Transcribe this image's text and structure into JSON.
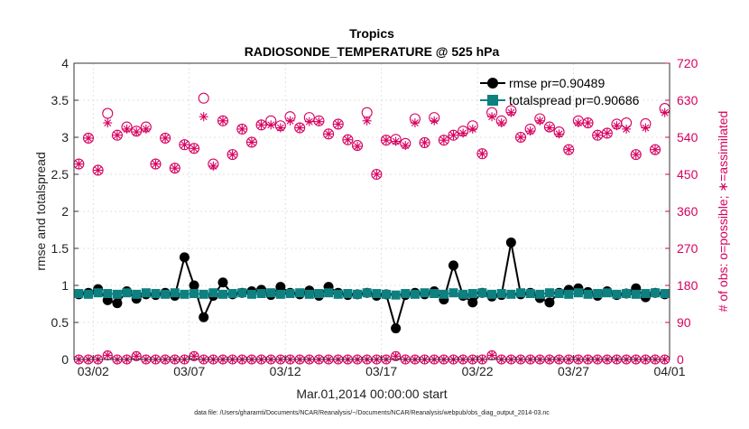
{
  "chart_data": {
    "type": "scatter",
    "title": "Tropics",
    "subtitle": "RADIOSONDE_TEMPERATURE @ 525 hPa",
    "xlabel": "Mar.01,2014 00:00:00 start",
    "ylabel_left": "rmse and totalspread",
    "ylabel_right": "# of obs: o=possible; ∗=assimilated",
    "footnote": "data file: /Users/gharamti/Documents/NCAR/Reanalysis/~/Documents/NCAR/Reanalysis/webpub/obs_diag_output_2014-03.nc",
    "xlim": [
      1,
      32
    ],
    "ylim_left": [
      0,
      4
    ],
    "ylim_right": [
      0,
      720
    ],
    "x_ticks": [
      {
        "value": 2,
        "label": "03/02"
      },
      {
        "value": 7,
        "label": "03/07"
      },
      {
        "value": 12,
        "label": "03/12"
      },
      {
        "value": 17,
        "label": "03/17"
      },
      {
        "value": 22,
        "label": "03/22"
      },
      {
        "value": 27,
        "label": "03/27"
      },
      {
        "value": 32,
        "label": "04/01"
      }
    ],
    "y_ticks_left": [
      "0",
      "0.5",
      "1",
      "1.5",
      "2",
      "2.5",
      "3",
      "3.5",
      "4"
    ],
    "y_ticks_right": [
      "0",
      "90",
      "180",
      "270",
      "360",
      "450",
      "540",
      "630",
      "720"
    ],
    "legend_position": "top-right",
    "colors": {
      "rmse": "#000000",
      "spread": "#0d8080",
      "obs": "#d6005f",
      "axis": "#333333"
    },
    "series": [
      {
        "name": "rmse pr=0.90489",
        "axis": "left",
        "x": [
          1.25,
          1.75,
          2.25,
          2.75,
          3.25,
          3.75,
          4.25,
          4.75,
          5.25,
          5.75,
          6.25,
          6.75,
          7.25,
          7.75,
          8.25,
          8.75,
          9.25,
          9.75,
          10.25,
          10.75,
          11.25,
          11.75,
          12.25,
          12.75,
          13.25,
          13.75,
          14.25,
          14.75,
          15.25,
          15.75,
          16.25,
          16.75,
          17.25,
          17.75,
          18.25,
          18.75,
          19.25,
          19.75,
          20.25,
          20.75,
          21.25,
          21.75,
          22.25,
          22.75,
          23.25,
          23.75,
          24.25,
          24.75,
          25.25,
          25.75,
          26.25,
          26.75,
          27.25,
          27.75,
          28.25,
          28.75,
          29.25,
          29.75,
          30.25,
          30.75,
          31.25,
          31.75
        ],
        "values": [
          0.88,
          0.9,
          0.95,
          0.8,
          0.76,
          0.92,
          0.82,
          0.88,
          0.87,
          0.9,
          0.86,
          1.38,
          1.0,
          0.57,
          0.86,
          1.04,
          0.88,
          0.9,
          0.92,
          0.94,
          0.87,
          0.98,
          0.9,
          0.88,
          0.93,
          0.86,
          0.98,
          0.9,
          0.87,
          0.88,
          0.9,
          0.86,
          0.88,
          0.42,
          0.87,
          0.9,
          0.88,
          0.92,
          0.81,
          1.27,
          0.86,
          0.77,
          0.9,
          0.85,
          0.87,
          1.58,
          0.88,
          0.9,
          0.83,
          0.77,
          0.9,
          0.94,
          0.96,
          0.91,
          0.86,
          0.92,
          0.87,
          0.89,
          0.96,
          0.84,
          0.9,
          0.88
        ]
      },
      {
        "name": "totalspread pr=0.90686",
        "axis": "left",
        "x": [
          1.25,
          1.75,
          2.25,
          2.75,
          3.25,
          3.75,
          4.25,
          4.75,
          5.25,
          5.75,
          6.25,
          6.75,
          7.25,
          7.75,
          8.25,
          8.75,
          9.25,
          9.75,
          10.25,
          10.75,
          11.25,
          11.75,
          12.25,
          12.75,
          13.25,
          13.75,
          14.25,
          14.75,
          15.25,
          15.75,
          16.25,
          16.75,
          17.25,
          17.75,
          18.25,
          18.75,
          19.25,
          19.75,
          20.25,
          20.75,
          21.25,
          21.75,
          22.25,
          22.75,
          23.25,
          23.75,
          24.25,
          24.75,
          25.25,
          25.75,
          26.25,
          26.75,
          27.25,
          27.75,
          28.25,
          28.75,
          29.25,
          29.75,
          30.25,
          30.75,
          31.25,
          31.75
        ],
        "values": [
          0.89,
          0.88,
          0.9,
          0.89,
          0.88,
          0.9,
          0.88,
          0.9,
          0.89,
          0.88,
          0.9,
          0.88,
          0.89,
          0.88,
          0.9,
          0.88,
          0.89,
          0.9,
          0.88,
          0.89,
          0.9,
          0.88,
          0.89,
          0.9,
          0.88,
          0.89,
          0.9,
          0.88,
          0.89,
          0.88,
          0.9,
          0.89,
          0.88,
          0.87,
          0.89,
          0.88,
          0.9,
          0.89,
          0.88,
          0.9,
          0.88,
          0.89,
          0.9,
          0.88,
          0.89,
          0.88,
          0.9,
          0.89,
          0.88,
          0.9,
          0.89,
          0.88,
          0.9,
          0.88,
          0.89,
          0.9,
          0.88,
          0.89,
          0.88,
          0.89,
          0.9,
          0.89
        ]
      },
      {
        "name": "obs possible",
        "axis": "right",
        "x": [
          1.25,
          1.75,
          2.25,
          2.75,
          3.25,
          3.75,
          4.25,
          4.75,
          5.25,
          5.75,
          6.25,
          6.75,
          7.25,
          7.75,
          8.25,
          8.75,
          9.25,
          9.75,
          10.25,
          10.75,
          11.25,
          11.75,
          12.25,
          12.75,
          13.25,
          13.75,
          14.25,
          14.75,
          15.25,
          15.75,
          16.25,
          16.75,
          17.25,
          17.75,
          18.25,
          18.75,
          19.25,
          19.75,
          20.25,
          20.75,
          21.25,
          21.75,
          22.25,
          22.75,
          23.25,
          23.75,
          24.25,
          24.75,
          25.25,
          25.75,
          26.25,
          26.75,
          27.25,
          27.75,
          28.25,
          28.75,
          29.25,
          29.75,
          30.25,
          30.75,
          31.25,
          31.75
        ],
        "values": [
          475,
          538,
          460,
          598,
          545,
          565,
          555,
          565,
          475,
          538,
          465,
          522,
          513,
          635,
          475,
          580,
          498,
          560,
          528,
          570,
          580,
          568,
          590,
          563,
          588,
          580,
          548,
          572,
          534,
          520,
          600,
          450,
          533,
          535,
          525,
          585,
          527,
          588,
          533,
          545,
          555,
          568,
          500,
          600,
          580,
          605,
          540,
          560,
          585,
          565,
          553,
          510,
          580,
          575,
          545,
          550,
          572,
          575,
          498,
          573,
          510,
          610
        ]
      },
      {
        "name": "obs assimilated",
        "axis": "right",
        "x": [
          1.25,
          1.75,
          2.25,
          2.75,
          3.25,
          3.75,
          4.25,
          4.75,
          5.25,
          5.75,
          6.25,
          6.75,
          7.25,
          7.75,
          8.25,
          8.75,
          9.25,
          9.75,
          10.25,
          10.75,
          11.25,
          11.75,
          12.25,
          12.75,
          13.25,
          13.75,
          14.25,
          14.75,
          15.25,
          15.75,
          16.25,
          16.75,
          17.25,
          17.75,
          18.25,
          18.75,
          19.25,
          19.75,
          20.25,
          20.75,
          21.25,
          21.75,
          22.25,
          22.75,
          23.25,
          23.75,
          24.25,
          24.75,
          25.25,
          25.75,
          26.25,
          26.75,
          27.25,
          27.75,
          28.25,
          28.75,
          29.25,
          29.75,
          30.25,
          30.75,
          31.25,
          31.75
        ],
        "values": [
          475,
          538,
          460,
          575,
          545,
          560,
          553,
          560,
          475,
          538,
          465,
          522,
          513,
          590,
          470,
          580,
          498,
          560,
          528,
          570,
          570,
          563,
          580,
          563,
          578,
          578,
          548,
          572,
          534,
          518,
          580,
          450,
          533,
          530,
          520,
          575,
          527,
          580,
          533,
          545,
          550,
          560,
          500,
          590,
          575,
          600,
          540,
          555,
          580,
          563,
          548,
          510,
          575,
          575,
          545,
          550,
          568,
          560,
          498,
          563,
          510,
          600
        ]
      },
      {
        "name": "obs possible (rejected)",
        "axis": "right",
        "x": [
          1.25,
          1.75,
          2.25,
          2.75,
          3.25,
          3.75,
          4.25,
          4.75,
          5.25,
          5.75,
          6.25,
          6.75,
          7.25,
          7.75,
          8.25,
          8.75,
          9.25,
          9.75,
          10.25,
          10.75,
          11.25,
          11.75,
          12.25,
          12.75,
          13.25,
          13.75,
          14.25,
          14.75,
          15.25,
          15.75,
          16.25,
          16.75,
          17.25,
          17.75,
          18.25,
          18.75,
          19.25,
          19.75,
          20.25,
          20.75,
          21.25,
          21.75,
          22.25,
          22.75,
          23.25,
          23.75,
          24.25,
          24.75,
          25.25,
          25.75,
          26.25,
          26.75,
          27.25,
          27.75,
          28.25,
          28.75,
          29.25,
          29.75,
          30.25,
          30.75,
          31.25,
          31.75
        ],
        "values": [
          0,
          0,
          0,
          10,
          0,
          0,
          8,
          0,
          0,
          0,
          0,
          0,
          8,
          0,
          0,
          0,
          0,
          0,
          0,
          0,
          0,
          0,
          0,
          0,
          0,
          0,
          0,
          0,
          0,
          0,
          0,
          0,
          0,
          8,
          0,
          0,
          0,
          0,
          0,
          0,
          0,
          0,
          0,
          10,
          0,
          0,
          0,
          0,
          0,
          0,
          0,
          0,
          0,
          0,
          0,
          0,
          0,
          0,
          0,
          0,
          0,
          0
        ]
      }
    ]
  }
}
